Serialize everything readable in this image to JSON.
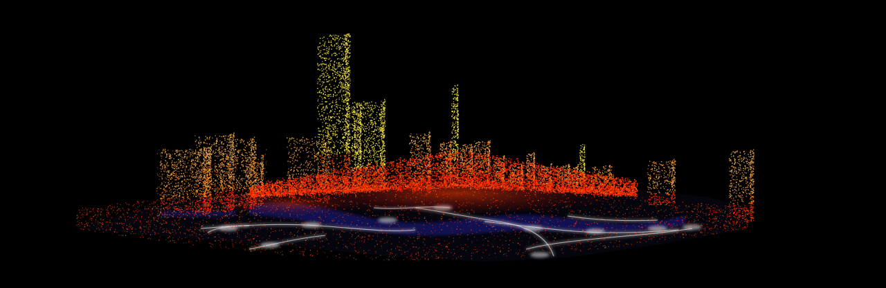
{
  "scene": {
    "kind": "3d-point-cloud-city-visualization",
    "background_color": "#000000",
    "palette": {
      "low": "#ff2a00",
      "mid": "#ff7a10",
      "high_warm": "#ffb040",
      "peak": "#fff23a",
      "ground_roads": "#d8d8d8",
      "ground_water": "#1c1a8a"
    },
    "layers": [
      "ground-map",
      "road-network",
      "point-cloud-towers"
    ]
  }
}
